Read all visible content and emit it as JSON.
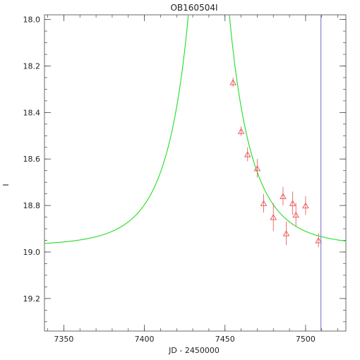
{
  "chart_data": {
    "type": "scatter",
    "title": "OB160504I",
    "xlabel": "JD - 2450000",
    "ylabel": "I",
    "xlim": [
      7338,
      7525
    ],
    "ylim": [
      19.34,
      17.98
    ],
    "y_inverted": true,
    "x_ticks": [
      7350,
      7400,
      7450,
      7500
    ],
    "x_tick_labels": [
      "7350",
      "7400",
      "7450",
      "7500"
    ],
    "y_ticks": [
      18.0,
      18.2,
      18.4,
      18.6,
      18.8,
      19.0,
      19.2
    ],
    "y_tick_labels": [
      "18.0",
      "18.2",
      "18.4",
      "18.6",
      "18.8",
      "19.0",
      "19.2"
    ],
    "grid": false,
    "series": [
      {
        "kind": "observations",
        "marker": "triangle",
        "color": "#e86060",
        "points": [
          {
            "x": 7455,
            "y": 18.27,
            "err": 0.02
          },
          {
            "x": 7460,
            "y": 18.48,
            "err": 0.02
          },
          {
            "x": 7464,
            "y": 18.58,
            "err": 0.03
          },
          {
            "x": 7470,
            "y": 18.64,
            "err": 0.04
          },
          {
            "x": 7474,
            "y": 18.79,
            "err": 0.04
          },
          {
            "x": 7480,
            "y": 18.85,
            "err": 0.06
          },
          {
            "x": 7486,
            "y": 18.76,
            "err": 0.04
          },
          {
            "x": 7488,
            "y": 18.92,
            "err": 0.05
          },
          {
            "x": 7492,
            "y": 18.79,
            "err": 0.05
          },
          {
            "x": 7494,
            "y": 18.84,
            "err": 0.05
          },
          {
            "x": 7500,
            "y": 18.8,
            "err": 0.04
          },
          {
            "x": 7508,
            "y": 18.95,
            "err": 0.03
          }
        ]
      },
      {
        "kind": "model",
        "color": "#22dd22",
        "model": "paczynski",
        "t0": 7440,
        "tE": 30,
        "u0": 0.05,
        "m_base": 18.975
      }
    ],
    "vline": {
      "x": 7509.5,
      "color": "#8888cc"
    }
  }
}
